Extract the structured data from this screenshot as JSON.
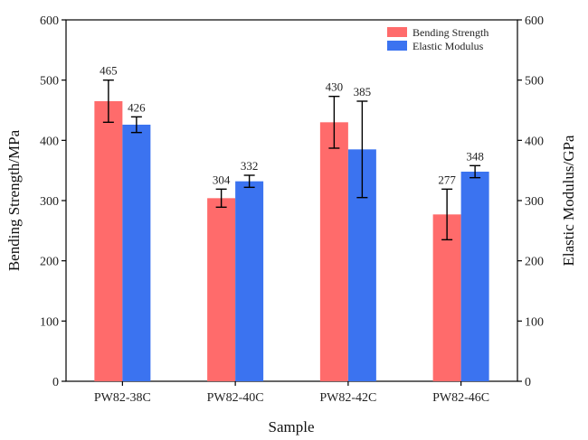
{
  "chart_data": {
    "type": "bar",
    "categories": [
      "PW82-38C",
      "PW82-40C",
      "PW82-42C",
      "PW82-46C"
    ],
    "series": [
      {
        "name": "Bending Strength",
        "axis": "left",
        "color": "#FF6B6B",
        "values": [
          465,
          304,
          430,
          277
        ],
        "errors": [
          35,
          15,
          43,
          42
        ],
        "labels": [
          "465",
          "304",
          "430",
          "277"
        ]
      },
      {
        "name": "Elastic Modulus",
        "axis": "right",
        "color": "#3B73F0",
        "values": [
          426,
          332,
          385,
          348
        ],
        "errors": [
          13,
          10,
          80,
          10
        ],
        "labels": [
          "426",
          "332",
          "385",
          "348"
        ]
      }
    ],
    "xlabel": "Sample",
    "ylabel": "Bending Strength/MPa",
    "y2label": "Elastic Modulus/GPa",
    "ylim": [
      0,
      600
    ],
    "y2lim": [
      0,
      600
    ],
    "yticks": [
      0,
      100,
      200,
      300,
      400,
      500,
      600
    ],
    "y2ticks": [
      0,
      100,
      200,
      300,
      400,
      500,
      600
    ],
    "grid": false,
    "legend_position": "top-right"
  }
}
